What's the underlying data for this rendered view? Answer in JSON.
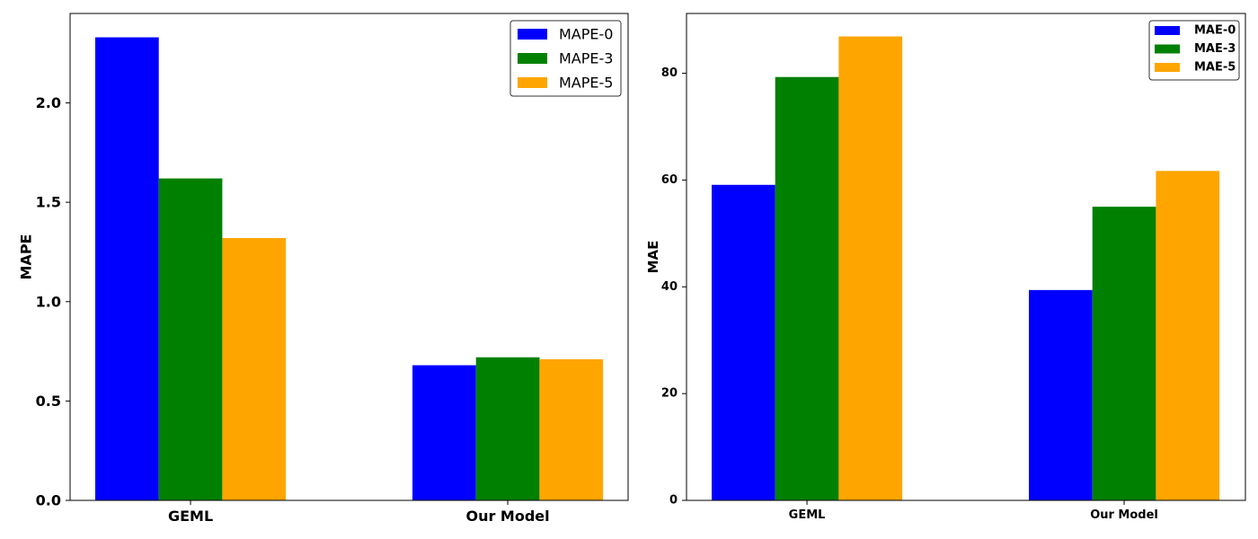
{
  "chart_data": [
    {
      "type": "bar",
      "categories": [
        "GEML",
        "Our Model"
      ],
      "series": [
        {
          "name": "MAPE-0",
          "values": [
            2.33,
            0.68
          ],
          "color": "#0000ff"
        },
        {
          "name": "MAPE-3",
          "values": [
            1.62,
            0.72
          ],
          "color": "#008000"
        },
        {
          "name": "MAPE-5",
          "values": [
            1.32,
            0.71
          ],
          "color": "#ffa500"
        }
      ],
      "title": "",
      "xlabel": "",
      "ylabel": "MAPE",
      "ylim": [
        0,
        2.45
      ],
      "yticks": [
        0.0,
        0.5,
        1.0,
        1.5,
        2.0
      ],
      "ytick_labels": [
        "0.0",
        "0.5",
        "1.0",
        "1.5",
        "2.0"
      ],
      "grid": false,
      "legend_position": "top-right"
    },
    {
      "type": "bar",
      "categories": [
        "GEML",
        "Our Model"
      ],
      "series": [
        {
          "name": "MAE-0",
          "values": [
            59.1,
            39.4
          ],
          "color": "#0000ff"
        },
        {
          "name": "MAE-3",
          "values": [
            79.3,
            55.0
          ],
          "color": "#008000"
        },
        {
          "name": "MAE-5",
          "values": [
            86.9,
            61.7
          ],
          "color": "#ffa500"
        }
      ],
      "title": "",
      "xlabel": "",
      "ylabel": "MAE",
      "ylim": [
        0,
        91.2
      ],
      "yticks": [
        0,
        20,
        40,
        60,
        80
      ],
      "ytick_labels": [
        "0",
        "20",
        "40",
        "60",
        "80"
      ],
      "grid": false,
      "legend_position": "top-right"
    }
  ]
}
